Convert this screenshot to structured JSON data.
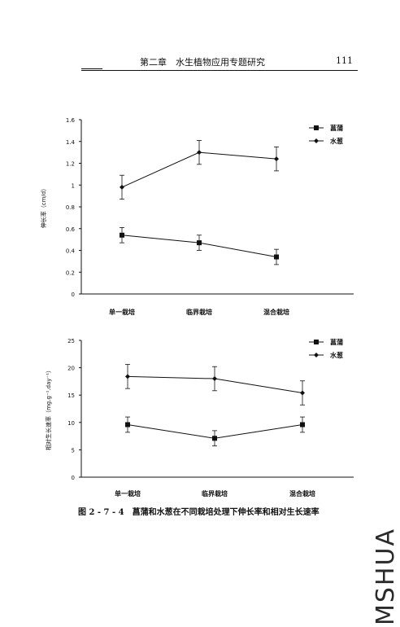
{
  "header": {
    "title": "第二章　水生植物应用专题研究",
    "page": "111"
  },
  "caption": "图 2 - 7 - 4　菖蒲和水葱在不同栽培处理下伸长率和相对生长速率",
  "watermark": "MSHUA",
  "chart_data": [
    {
      "type": "line",
      "categories": [
        "单一栽培",
        "临界栽培",
        "混合栽培"
      ],
      "ylabel": "伸长率（cm/d）",
      "ylim": [
        0,
        1.6
      ],
      "yticks": [
        "0",
        "0.2",
        "0.4",
        "0.6",
        "0.8",
        "1",
        "1.2",
        "1.4",
        "1.6"
      ],
      "legend_position": "top-right",
      "series": [
        {
          "name": "菖蒲",
          "marker": "square",
          "values": [
            0.54,
            0.47,
            0.34
          ],
          "errors": [
            0.07,
            0.07,
            0.07
          ]
        },
        {
          "name": "水葱",
          "marker": "diamond",
          "values": [
            0.98,
            1.3,
            1.24
          ],
          "errors": [
            0.11,
            0.11,
            0.11
          ]
        }
      ]
    },
    {
      "type": "line",
      "categories": [
        "单一栽培",
        "临界栽培",
        "混合栽培"
      ],
      "ylabel": "相对生长速率（mg.g⁻¹.day⁻¹）",
      "ylim": [
        0,
        25
      ],
      "yticks": [
        "0",
        "5",
        "10",
        "15",
        "20",
        "25"
      ],
      "legend_position": "top-right",
      "series": [
        {
          "name": "菖蒲",
          "marker": "square",
          "values": [
            9.6,
            7.1,
            9.6
          ],
          "errors": [
            1.4,
            1.4,
            1.4
          ]
        },
        {
          "name": "水葱",
          "marker": "diamond",
          "values": [
            18.4,
            18.0,
            15.4
          ],
          "errors": [
            2.2,
            2.2,
            2.2
          ]
        }
      ]
    }
  ]
}
